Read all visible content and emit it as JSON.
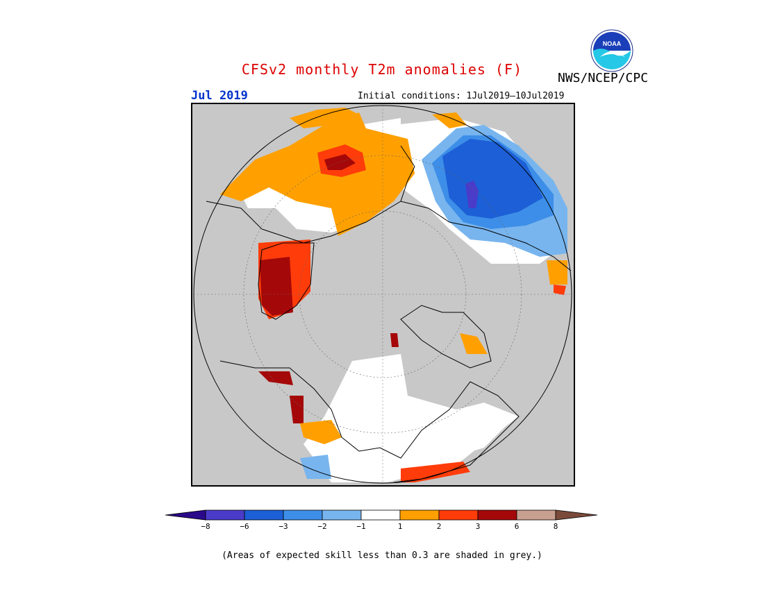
{
  "header": {
    "title": "CFSv2 monthly T2m anomalies (F)",
    "agency": "NWS/NCEP/CPC",
    "logo_text": "NOAA",
    "month": "Jul 2019",
    "initial_conditions": "Initial conditions: 1Jul2019–10Jul2019"
  },
  "colors": {
    "title": "#dd0000",
    "month": "#0033cc",
    "mask_grey": "#c8c8c8",
    "scale": [
      "#2a0a8a",
      "#4b3bc9",
      "#1c5fd6",
      "#3d8ee8",
      "#78b5ee",
      "#ffffff",
      "#ffa000",
      "#ff3c0a",
      "#a50808",
      "#c8a090",
      "#7a4a3a"
    ]
  },
  "legend": {
    "ticks": [
      "−8",
      "−6",
      "−3",
      "−2",
      "−1",
      "1",
      "2",
      "3",
      "6",
      "8"
    ]
  },
  "footnote": "(Areas of expected skill less than 0.3 are shaded in grey.)",
  "regions": {
    "europe_asia": "warm anomalies",
    "east_siberia": "cold anomalies",
    "greenland_west": "strong warm anomalies"
  }
}
